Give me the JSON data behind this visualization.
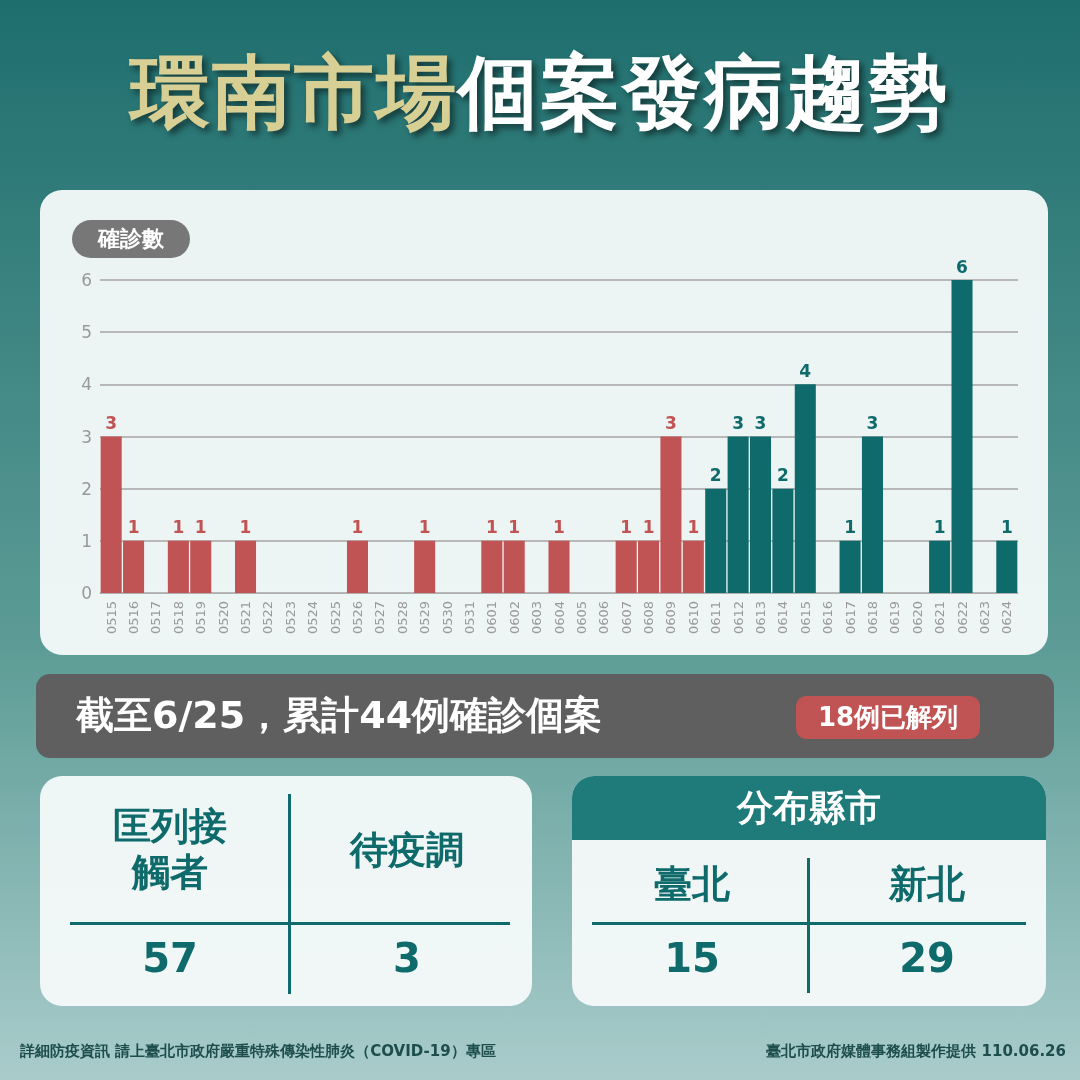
{
  "chart_data": {
    "type": "bar",
    "title": "環南市場個案發病趨勢",
    "ylabel": "確診數",
    "categories": [
      "0515",
      "0516",
      "0517",
      "0518",
      "0519",
      "0520",
      "0521",
      "0522",
      "0523",
      "0524",
      "0525",
      "0526",
      "0527",
      "0528",
      "0529",
      "0530",
      "0531",
      "0601",
      "0602",
      "0603",
      "0604",
      "0605",
      "0606",
      "0607",
      "0608",
      "0609",
      "0610",
      "0611",
      "0612",
      "0613",
      "0614",
      "0615",
      "0616",
      "0617",
      "0618",
      "0619",
      "0620",
      "0621",
      "0622",
      "0623",
      "0624"
    ],
    "values": [
      3,
      1,
      0,
      1,
      1,
      0,
      1,
      0,
      0,
      0,
      0,
      1,
      0,
      0,
      1,
      0,
      0,
      1,
      1,
      0,
      1,
      0,
      0,
      1,
      1,
      3,
      1,
      2,
      3,
      3,
      2,
      4,
      0,
      1,
      3,
      0,
      0,
      1,
      6,
      0,
      1
    ],
    "value_labels": [
      "3",
      "1",
      null,
      "1",
      "1",
      null,
      "1",
      null,
      null,
      null,
      null,
      "1",
      null,
      null,
      "1",
      null,
      null,
      "1",
      "1",
      null,
      "1",
      null,
      null,
      "1",
      "1",
      "3",
      "1",
      "2",
      "3",
      "3",
      "2",
      "4",
      null,
      "1",
      "3",
      null,
      null,
      "1",
      "6",
      null,
      "1"
    ],
    "colors": [
      "#c05353",
      "#c05353",
      "#c05353",
      "#c05353",
      "#c05353",
      "#c05353",
      "#c05353",
      "#c05353",
      "#c05353",
      "#c05353",
      "#c05353",
      "#c05353",
      "#c05353",
      "#c05353",
      "#c05353",
      "#c05353",
      "#c05353",
      "#c05353",
      "#c05353",
      "#c05353",
      "#c05353",
      "#c05353",
      "#c05353",
      "#c05353",
      "#c05353",
      "#c05353",
      "#c05353",
      "#0f6b6b",
      "#0f6b6b",
      "#0f6b6b",
      "#0f6b6b",
      "#0f6b6b",
      "#0f6b6b",
      "#0f6b6b",
      "#0f6b6b",
      "#0f6b6b",
      "#0f6b6b",
      "#0f6b6b",
      "#0f6b6b",
      "#0f6b6b",
      "#0f6b6b"
    ],
    "ylim": [
      0,
      6
    ],
    "yticks": [
      0,
      1,
      2,
      3,
      4,
      5,
      6
    ],
    "grid": "y",
    "annotations": [
      "截至6/25，累計44例確診個案",
      "18例已解列",
      "匡列接觸者",
      "待疫調",
      "57",
      "3",
      "分布縣市",
      "臺北",
      "新北",
      "15",
      "29",
      "詳細防疫資訊 請上臺北市政府嚴重特殊傳染性肺炎（COVID-19）專區",
      "臺北市政府媒體事務組製作提供 110.06.26"
    ]
  }
}
